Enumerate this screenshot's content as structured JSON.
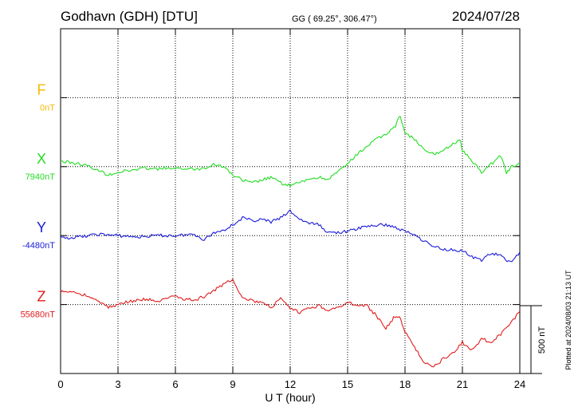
{
  "header": {
    "station": "Godhavn (GDH)  [DTU]",
    "coords": "GG ( 69.25°, 306.47°)",
    "date": "2024/07/28"
  },
  "side_note": "Plotted at 2024/08/03 21:13 UT",
  "scale_label": "500 nT",
  "chart_data": {
    "type": "line",
    "xlabel": "U T (hour)",
    "ylabel": "",
    "x_ticks": [
      0,
      3,
      6,
      9,
      12,
      15,
      18,
      21,
      24
    ],
    "xlim": [
      0,
      24
    ],
    "grid": true,
    "scale_nT": 500,
    "series": [
      {
        "name": "F",
        "label": "F",
        "baseline_label": "0nT",
        "color": "#f5b800",
        "baseline_row": 1,
        "points": []
      },
      {
        "name": "X",
        "label": "X",
        "baseline_label": "7940nT",
        "color": "#22dd22",
        "baseline_row": 2,
        "points": [
          [
            0,
            40
          ],
          [
            0.5,
            30
          ],
          [
            1,
            20
          ],
          [
            1.5,
            0
          ],
          [
            2,
            -30
          ],
          [
            2.5,
            -60
          ],
          [
            3,
            -40
          ],
          [
            3.5,
            -30
          ],
          [
            4,
            -20
          ],
          [
            4.5,
            -10
          ],
          [
            5,
            -20
          ],
          [
            5.5,
            -10
          ],
          [
            6,
            -20
          ],
          [
            6.5,
            -10
          ],
          [
            7,
            -20
          ],
          [
            7.5,
            -10
          ],
          [
            8,
            20
          ],
          [
            8.5,
            0
          ],
          [
            9,
            -60
          ],
          [
            9.5,
            -100
          ],
          [
            10,
            -120
          ],
          [
            10.5,
            -100
          ],
          [
            11,
            -80
          ],
          [
            11.5,
            -120
          ],
          [
            12,
            -140
          ],
          [
            12.5,
            -120
          ],
          [
            13,
            -90
          ],
          [
            13.5,
            -80
          ],
          [
            14,
            -90
          ],
          [
            14.5,
            -40
          ],
          [
            15,
            20
          ],
          [
            15.5,
            90
          ],
          [
            16,
            150
          ],
          [
            16.5,
            200
          ],
          [
            17,
            240
          ],
          [
            17.5,
            300
          ],
          [
            17.75,
            380
          ],
          [
            18,
            250
          ],
          [
            18.5,
            200
          ],
          [
            19,
            120
          ],
          [
            19.5,
            90
          ],
          [
            20,
            120
          ],
          [
            20.5,
            170
          ],
          [
            20.9,
            190
          ],
          [
            21,
            120
          ],
          [
            21.5,
            40
          ],
          [
            22,
            -40
          ],
          [
            22.5,
            20
          ],
          [
            23,
            80
          ],
          [
            23.3,
            -40
          ],
          [
            23.6,
            0
          ],
          [
            24,
            20
          ]
        ]
      },
      {
        "name": "Y",
        "label": "Y",
        "baseline_label": "-4480nT",
        "color": "#1a1adb",
        "baseline_row": 3,
        "points": [
          [
            0,
            -20
          ],
          [
            1,
            -10
          ],
          [
            2,
            10
          ],
          [
            3,
            0
          ],
          [
            4,
            -10
          ],
          [
            5,
            0
          ],
          [
            6,
            0
          ],
          [
            7,
            10
          ],
          [
            7.5,
            -30
          ],
          [
            8,
            20
          ],
          [
            8.5,
            40
          ],
          [
            9,
            80
          ],
          [
            9.5,
            130
          ],
          [
            10,
            110
          ],
          [
            10.5,
            120
          ],
          [
            11,
            100
          ],
          [
            11.5,
            130
          ],
          [
            12,
            180
          ],
          [
            12.5,
            120
          ],
          [
            13,
            90
          ],
          [
            13.5,
            80
          ],
          [
            14,
            20
          ],
          [
            15,
            30
          ],
          [
            16,
            70
          ],
          [
            17,
            80
          ],
          [
            17.5,
            60
          ],
          [
            18,
            30
          ],
          [
            18.5,
            10
          ],
          [
            19,
            -40
          ],
          [
            19.5,
            -80
          ],
          [
            20,
            -100
          ],
          [
            21,
            -110
          ],
          [
            21.5,
            -160
          ],
          [
            22,
            -180
          ],
          [
            22.5,
            -130
          ],
          [
            23,
            -150
          ],
          [
            23.5,
            -200
          ],
          [
            24,
            -120
          ]
        ]
      },
      {
        "name": "Z",
        "label": "Z",
        "baseline_label": "55680nT",
        "color": "#e01c1c",
        "baseline_row": 4,
        "points": [
          [
            0,
            90
          ],
          [
            0.5,
            100
          ],
          [
            1,
            80
          ],
          [
            1.5,
            60
          ],
          [
            2,
            20
          ],
          [
            2.5,
            -20
          ],
          [
            3,
            0
          ],
          [
            3.5,
            20
          ],
          [
            4,
            30
          ],
          [
            4.5,
            40
          ],
          [
            5,
            20
          ],
          [
            5.5,
            40
          ],
          [
            6,
            60
          ],
          [
            6.5,
            40
          ],
          [
            7,
            30
          ],
          [
            7.5,
            60
          ],
          [
            8,
            100
          ],
          [
            8.5,
            150
          ],
          [
            9,
            190
          ],
          [
            9.5,
            50
          ],
          [
            10,
            30
          ],
          [
            10.5,
            10
          ],
          [
            11,
            -20
          ],
          [
            11.5,
            40
          ],
          [
            12,
            -30
          ],
          [
            12.5,
            -60
          ],
          [
            13,
            -20
          ],
          [
            13.5,
            -10
          ],
          [
            14,
            -40
          ],
          [
            14.5,
            -20
          ],
          [
            15,
            10
          ],
          [
            15.5,
            0
          ],
          [
            16,
            -10
          ],
          [
            16.5,
            -80
          ],
          [
            17,
            -180
          ],
          [
            17.4,
            -100
          ],
          [
            17.7,
            -80
          ],
          [
            18,
            -200
          ],
          [
            18.5,
            -320
          ],
          [
            19,
            -420
          ],
          [
            19.5,
            -460
          ],
          [
            20,
            -400
          ],
          [
            20.5,
            -360
          ],
          [
            21,
            -280
          ],
          [
            21.5,
            -340
          ],
          [
            22,
            -250
          ],
          [
            22.5,
            -280
          ],
          [
            23,
            -220
          ],
          [
            23.5,
            -140
          ],
          [
            24,
            -50
          ]
        ]
      }
    ]
  }
}
